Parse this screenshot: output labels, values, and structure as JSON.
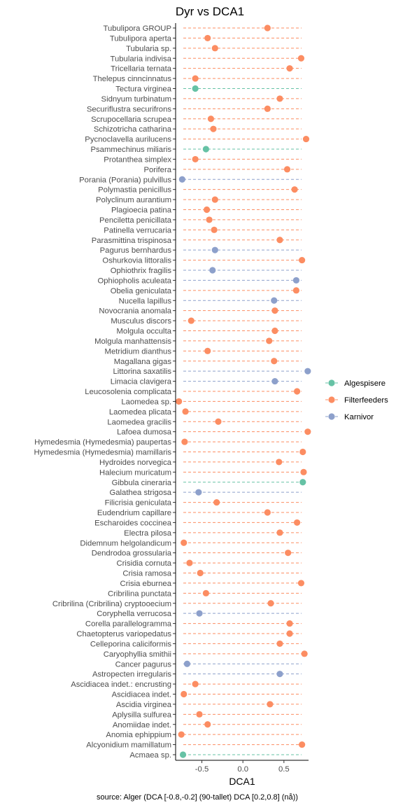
{
  "chart_data": {
    "type": "scatter",
    "title": "Dyr vs DCA1",
    "xlabel": "DCA1",
    "ylabel": "",
    "caption": "source: Alger (DCA [-0.8,-0.2] (90-tallet) DCA [0.2,0.8] (nå))",
    "xlim": [
      -0.82,
      0.8
    ],
    "xticks": [
      -0.5,
      0.0,
      0.5
    ],
    "xtick_labels": [
      "-0.5",
      "0.0",
      "0.5"
    ],
    "grid": false,
    "legend_position": "right",
    "series": [
      {
        "name": "Algespisere",
        "color": "#66c2a5"
      },
      {
        "name": "Filterfeeders",
        "color": "#fc8d62"
      },
      {
        "name": "Karnivor",
        "color": "#8da0cb"
      }
    ],
    "points": [
      {
        "label": "Tubulipora GROUP",
        "group": "Filterfeeders",
        "x": 0.3
      },
      {
        "label": "Tubulipora aperta",
        "group": "Filterfeeders",
        "x": -0.43
      },
      {
        "label": "Tubularia sp.",
        "group": "Filterfeeders",
        "x": -0.34
      },
      {
        "label": "Tubularia indivisa",
        "group": "Filterfeeders",
        "x": 0.71
      },
      {
        "label": "Tricellaria ternata",
        "group": "Filterfeeders",
        "x": 0.57
      },
      {
        "label": "Thelepus cinncinnatus",
        "group": "Filterfeeders",
        "x": -0.58
      },
      {
        "label": "Tectura virginea",
        "group": "Algespisere",
        "x": -0.58
      },
      {
        "label": "Sidnyum turbinatum",
        "group": "Filterfeeders",
        "x": 0.45
      },
      {
        "label": "Securiflustra securifrons",
        "group": "Filterfeeders",
        "x": 0.3
      },
      {
        "label": "Scrupocellaria scrupea",
        "group": "Filterfeeders",
        "x": -0.39
      },
      {
        "label": "Schizotricha catharina",
        "group": "Filterfeeders",
        "x": -0.36
      },
      {
        "label": "Pycnoclavella aurilucens",
        "group": "Filterfeeders",
        "x": 0.77
      },
      {
        "label": "Psammechinus miliaris",
        "group": "Algespisere",
        "x": -0.45
      },
      {
        "label": "Protanthea simplex",
        "group": "Filterfeeders",
        "x": -0.58
      },
      {
        "label": "Porifera",
        "group": "Filterfeeders",
        "x": 0.54
      },
      {
        "label": "Porania (Porania) pulvillus",
        "group": "Karnivor",
        "x": -0.74
      },
      {
        "label": "Polymastia penicillus",
        "group": "Filterfeeders",
        "x": 0.63
      },
      {
        "label": "Polyclinum aurantium",
        "group": "Filterfeeders",
        "x": -0.34
      },
      {
        "label": "Plagioecia patina",
        "group": "Filterfeeders",
        "x": -0.44
      },
      {
        "label": "Penciletta penicillata",
        "group": "Filterfeeders",
        "x": -0.41
      },
      {
        "label": "Patinella verrucaria",
        "group": "Filterfeeders",
        "x": -0.35
      },
      {
        "label": "Parasmittina trispinosa",
        "group": "Filterfeeders",
        "x": 0.45
      },
      {
        "label": "Pagurus bernhardus",
        "group": "Karnivor",
        "x": -0.34
      },
      {
        "label": "Oshurkovia littoralis",
        "group": "Filterfeeders",
        "x": 0.72
      },
      {
        "label": "Ophiothrix fragilis",
        "group": "Karnivor",
        "x": -0.37
      },
      {
        "label": "Ophiopholis aculeata",
        "group": "Karnivor",
        "x": 0.65
      },
      {
        "label": "Obelia geniculata",
        "group": "Filterfeeders",
        "x": 0.65
      },
      {
        "label": "Nucella lapillus",
        "group": "Karnivor",
        "x": 0.38
      },
      {
        "label": "Novocrania anomala",
        "group": "Filterfeeders",
        "x": 0.39
      },
      {
        "label": "Musculus discors",
        "group": "Filterfeeders",
        "x": -0.63
      },
      {
        "label": "Molgula occulta",
        "group": "Filterfeeders",
        "x": 0.39
      },
      {
        "label": "Molgula manhattensis",
        "group": "Filterfeeders",
        "x": 0.32
      },
      {
        "label": "Metridium dianthus",
        "group": "Filterfeeders",
        "x": -0.43
      },
      {
        "label": "Magallana gigas",
        "group": "Filterfeeders",
        "x": 0.38
      },
      {
        "label": "Littorina saxatilis",
        "group": "Karnivor",
        "x": 0.79
      },
      {
        "label": "Limacia clavigera",
        "group": "Karnivor",
        "x": 0.39
      },
      {
        "label": "Leucosolenia complicata",
        "group": "Filterfeeders",
        "x": 0.66
      },
      {
        "label": "Laomedea sp.",
        "group": "Filterfeeders",
        "x": -0.78
      },
      {
        "label": "Laomedea plicata",
        "group": "Filterfeeders",
        "x": -0.7
      },
      {
        "label": "Laomedea gracilis",
        "group": "Filterfeeders",
        "x": -0.3
      },
      {
        "label": "Lafoea dumosa",
        "group": "Filterfeeders",
        "x": 0.79
      },
      {
        "label": "Hymedesmia (Hymedesmia) paupertas",
        "group": "Filterfeeders",
        "x": -0.71
      },
      {
        "label": "Hymedesmia (Hymedesmia) mamillaris",
        "group": "Filterfeeders",
        "x": 0.73
      },
      {
        "label": "Hydroides norvegica",
        "group": "Filterfeeders",
        "x": 0.44
      },
      {
        "label": "Halecium muricatum",
        "group": "Filterfeeders",
        "x": 0.74
      },
      {
        "label": "Gibbula cineraria",
        "group": "Algespisere",
        "x": 0.73
      },
      {
        "label": "Galathea strigosa",
        "group": "Karnivor",
        "x": -0.54
      },
      {
        "label": "Filicrisia geniculata",
        "group": "Filterfeeders",
        "x": -0.32
      },
      {
        "label": "Eudendrium capillare",
        "group": "Filterfeeders",
        "x": 0.3
      },
      {
        "label": "Escharoides coccinea",
        "group": "Filterfeeders",
        "x": 0.66
      },
      {
        "label": "Electra pilosa",
        "group": "Filterfeeders",
        "x": 0.45
      },
      {
        "label": "Didemnum helgolandicum",
        "group": "Filterfeeders",
        "x": -0.72
      },
      {
        "label": "Dendrodoa grossularia",
        "group": "Filterfeeders",
        "x": 0.55
      },
      {
        "label": "Crisidia cornuta",
        "group": "Filterfeeders",
        "x": -0.65
      },
      {
        "label": "Crisia ramosa",
        "group": "Filterfeeders",
        "x": -0.52
      },
      {
        "label": "Crisia eburnea",
        "group": "Filterfeeders",
        "x": 0.71
      },
      {
        "label": "Cribrilina punctata",
        "group": "Filterfeeders",
        "x": -0.45
      },
      {
        "label": "Cribrilina (Cribrilina) cryptooecium",
        "group": "Filterfeeders",
        "x": 0.34
      },
      {
        "label": "Coryphella verrucosa",
        "group": "Karnivor",
        "x": -0.53
      },
      {
        "label": "Corella parallelogramma",
        "group": "Filterfeeders",
        "x": 0.57
      },
      {
        "label": "Chaetopterus variopedatus",
        "group": "Filterfeeders",
        "x": 0.57
      },
      {
        "label": "Celleporina caliciformis",
        "group": "Filterfeeders",
        "x": 0.45
      },
      {
        "label": "Caryophyllia smithii",
        "group": "Filterfeeders",
        "x": 0.75
      },
      {
        "label": "Cancer pagurus",
        "group": "Karnivor",
        "x": -0.68
      },
      {
        "label": "Astropecten irregularis",
        "group": "Karnivor",
        "x": 0.45
      },
      {
        "label": "Ascidiacea indet.: encrusting",
        "group": "Filterfeeders",
        "x": -0.58
      },
      {
        "label": "Ascidiacea indet.",
        "group": "Filterfeeders",
        "x": -0.72
      },
      {
        "label": "Ascidia virginea",
        "group": "Filterfeeders",
        "x": 0.33
      },
      {
        "label": "Aplysilla sulfurea",
        "group": "Filterfeeders",
        "x": -0.53
      },
      {
        "label": "Anomiidae indet.",
        "group": "Filterfeeders",
        "x": -0.43
      },
      {
        "label": "Anomia ephippium",
        "group": "Filterfeeders",
        "x": -0.75
      },
      {
        "label": "Alcyonidium mamillatum",
        "group": "Filterfeeders",
        "x": 0.72
      },
      {
        "label": "Acmaea sp.",
        "group": "Algespisere",
        "x": -0.73
      }
    ]
  }
}
